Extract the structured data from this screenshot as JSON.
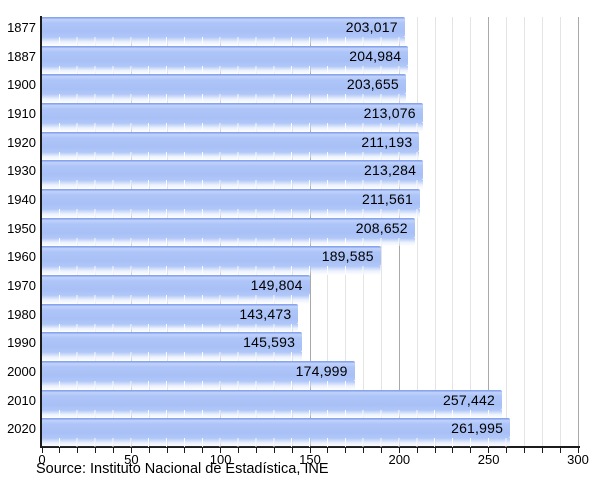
{
  "chart_data": {
    "type": "bar",
    "orientation": "horizontal",
    "title": "",
    "xlabel": "",
    "ylabel": "",
    "categories": [
      "1877",
      "1887",
      "1900",
      "1910",
      "1920",
      "1930",
      "1940",
      "1950",
      "1960",
      "1970",
      "1980",
      "1990",
      "2000",
      "2010",
      "2020"
    ],
    "values": [
      203017,
      204984,
      203655,
      213076,
      211193,
      213284,
      211561,
      208652,
      189585,
      149804,
      143473,
      145593,
      174999,
      257442,
      261995
    ],
    "value_labels": [
      "203,017",
      "204,984",
      "203,655",
      "213,076",
      "211,193",
      "213,284",
      "211,561",
      "208,652",
      "189,585",
      "149,804",
      "143,473",
      "145,593",
      "174,999",
      "257,442",
      "261,995"
    ],
    "axis_unit_divisor": 1000,
    "xlim": [
      0,
      300
    ],
    "x_tick_values": [
      0,
      50,
      100,
      150,
      200,
      250,
      300
    ],
    "x_tick_labels": [
      "0",
      "50",
      "100",
      "150",
      "200",
      "250",
      "300"
    ],
    "x_minor_step": 10,
    "grid": "vertical, minor every 10, major every 50",
    "legend": "none",
    "source": "Source: Instituto Nacional de Estadística, INE",
    "colors": {
      "bar": "#abc3f7",
      "bar_top_edge": "#7f9dea",
      "grid_minor": "#e4e4e4",
      "grid_major": "#a9a9a9",
      "axis": "#1c1c1c",
      "text": "#000000",
      "background": "#ffffff"
    }
  }
}
